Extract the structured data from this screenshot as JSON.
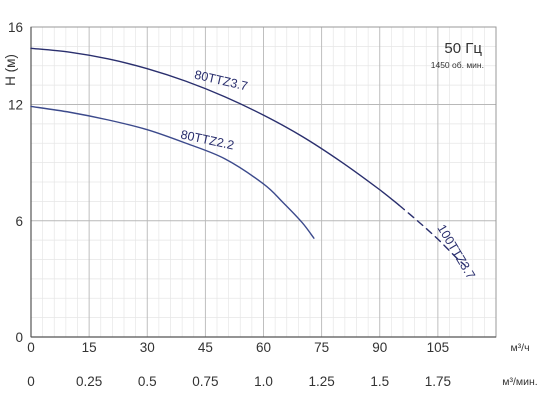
{
  "chart_data": {
    "type": "line",
    "xlabel": "м³/ч",
    "xlabel_secondary": "м³/мин.",
    "ylabel": "H (м)",
    "xlim": [
      0,
      120
    ],
    "ylim": [
      0,
      16
    ],
    "xticks": [
      0,
      15,
      30,
      45,
      60,
      75,
      90,
      105
    ],
    "xticks_secondary": [
      "0",
      "0.25",
      "0.5",
      "0.75",
      "1.0",
      "1.25",
      "1.5",
      "1.75"
    ],
    "yticks": [
      0,
      6,
      12,
      16
    ],
    "grid": true,
    "annotation": {
      "frequency": "50 Гц",
      "speed": "1450 об. мин."
    },
    "series": [
      {
        "name": "80TTZ3.7",
        "color": "#2a2f6e",
        "x": [
          0,
          10,
          20,
          30,
          40,
          50,
          60,
          70,
          80,
          90,
          95
        ],
        "y": [
          14.9,
          14.7,
          14.35,
          13.85,
          13.2,
          12.4,
          11.45,
          10.35,
          9.05,
          7.6,
          6.8
        ]
      },
      {
        "name": "100TTZ3.7",
        "color": "#2a2f6e",
        "dashed": true,
        "x": [
          95,
          100,
          105,
          110,
          112
        ],
        "y": [
          6.8,
          5.95,
          5.05,
          4.05,
          3.7
        ]
      },
      {
        "name": "80TTZ2.2",
        "color": "#3c4a8c",
        "x": [
          0,
          10,
          20,
          30,
          40,
          50,
          60,
          65,
          70,
          73
        ],
        "y": [
          11.9,
          11.6,
          11.2,
          10.7,
          10.0,
          9.2,
          7.9,
          6.95,
          5.9,
          5.1
        ]
      }
    ]
  }
}
